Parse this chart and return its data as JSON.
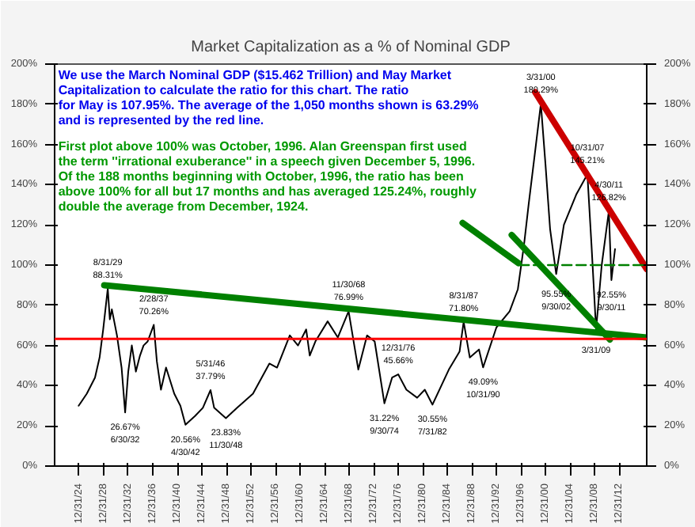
{
  "chart_data": {
    "type": "line",
    "title": "Market Capitalization as a % of Nominal GDP",
    "x": [
      "1924-12",
      "1926-04",
      "1927-08",
      "1928-05",
      "1928-12",
      "1929-08-31",
      "1930-01",
      "1930-05",
      "1931-03",
      "1931-12",
      "1932-06-30",
      "1933-01",
      "1933-08",
      "1934-04",
      "1934-12",
      "1935-07",
      "1936-03",
      "1937-02-28",
      "1937-09",
      "1938-05",
      "1939-03",
      "1940-07",
      "1941-07",
      "1942-04-30",
      "1943-12",
      "1945-03",
      "1946-05-31",
      "1947-01",
      "1948-11-30",
      "1950-10",
      "1953-05",
      "1956-01",
      "1957-04",
      "1959-05",
      "1960-09",
      "1962-01",
      "1962-08",
      "1963-07",
      "1965-07",
      "1967-03",
      "1968-11-30",
      "1970-07",
      "1971-12",
      "1973-03",
      "1974-09-30",
      "1976-01",
      "1976-12-31",
      "1978-05",
      "1980-02",
      "1981-05",
      "1982-07-31",
      "1985-04",
      "1987-01",
      "1987-08-31",
      "1988-09",
      "1990-03",
      "1990-10-31",
      "1993-01",
      "1995-03",
      "1996-07",
      "1997-07",
      "1998-04",
      "1999-04",
      "2000-03-31",
      "2001-01",
      "2001-10",
      "2002-09-30",
      "2004-01",
      "2006-01",
      "2007-10-31",
      "2008-07",
      "2009-03-31",
      "2010-03",
      "2011-04-30",
      "2011-09-30",
      "2012-05"
    ],
    "series": [
      {
        "color": "#000000",
        "values": [
          30,
          36,
          44,
          54,
          68,
          88.31,
          73,
          78,
          65,
          49,
          26.67,
          47,
          60,
          47,
          55,
          60,
          62,
          70.26,
          52,
          38,
          49,
          36,
          30,
          20.56,
          25,
          29,
          37.79,
          29,
          23.83,
          29,
          36,
          51,
          49,
          65,
          60,
          68,
          55,
          62,
          72,
          64,
          76.99,
          48,
          65,
          62,
          31.22,
          44,
          45.66,
          38,
          34,
          38,
          30.55,
          48,
          57,
          71.8,
          54,
          58,
          49.09,
          69,
          77,
          88,
          110,
          130,
          155,
          180.29,
          150,
          118,
          95.55,
          120,
          135,
          145.21,
          110,
          68,
          100,
          126.82,
          92.55,
          107.95
        ]
      },
      {
        "color": "#008000",
        "x": [
          "1929-02",
          "2017-07"
        ],
        "values": [
          90,
          64
        ]
      },
      {
        "color": "#cc0000",
        "x": [
          "1999-05",
          "2017-07"
        ],
        "values": [
          186,
          98
        ]
      },
      {
        "color": "#008000",
        "x": [
          "1995-07",
          "2011-07"
        ],
        "values": [
          115,
          63
        ]
      },
      {
        "color": "#008000",
        "x": [
          "1987-07",
          "1996-08"
        ],
        "values": [
          121,
          101
        ]
      },
      {
        "color": "#008000",
        "x": [
          "1996-10",
          "2017-07"
        ],
        "values": [
          100,
          100
        ],
        "line_style": "dashed"
      }
    ],
    "ref_lines": [
      {
        "axis": "y",
        "value": 63.29,
        "color": "#ff0000"
      }
    ],
    "xlim": [
      "1921-01",
      "2017-07"
    ],
    "xticks": [
      {
        "value": "1924-12-31",
        "label": "12/31/24"
      },
      {
        "value": "1928-12-31",
        "label": "12/31/28"
      },
      {
        "value": "1932-12-31",
        "label": "12/31/32"
      },
      {
        "value": "1936-12-31",
        "label": "12/31/36"
      },
      {
        "value": "1940-12-31",
        "label": "12/31/40"
      },
      {
        "value": "1944-12-31",
        "label": "12/31/44"
      },
      {
        "value": "1948-12-31",
        "label": "12/31/48"
      },
      {
        "value": "1952-12-31",
        "label": "12/31/52"
      },
      {
        "value": "1956-12-31",
        "label": "12/31/56"
      },
      {
        "value": "1960-12-31",
        "label": "12/31/60"
      },
      {
        "value": "1964-12-31",
        "label": "12/31/64"
      },
      {
        "value": "1968-12-31",
        "label": "12/31/68"
      },
      {
        "value": "1972-12-31",
        "label": "12/31/72"
      },
      {
        "value": "1976-12-31",
        "label": "12/31/76"
      },
      {
        "value": "1980-12-31",
        "label": "12/31/80"
      },
      {
        "value": "1984-12-31",
        "label": "12/31/84"
      },
      {
        "value": "1988-12-31",
        "label": "12/31/88"
      },
      {
        "value": "1992-12-31",
        "label": "12/31/92"
      },
      {
        "value": "1996-12-31",
        "label": "12/31/96"
      },
      {
        "value": "2000-12-31",
        "label": "12/31/00"
      },
      {
        "value": "2004-12-31",
        "label": "12/31/04"
      },
      {
        "value": "2008-12-31",
        "label": "12/31/08"
      },
      {
        "value": "2012-12-31",
        "label": "12/31/12"
      }
    ],
    "ylim": [
      0,
      200
    ],
    "yticks": [
      {
        "value": 0,
        "label": "0%"
      },
      {
        "value": 20,
        "label": "20%"
      },
      {
        "value": 40,
        "label": "40%"
      },
      {
        "value": 60,
        "label": "60%"
      },
      {
        "value": 80,
        "label": "80%"
      },
      {
        "value": 100,
        "label": "100%"
      },
      {
        "value": 120,
        "label": "120%"
      },
      {
        "value": 140,
        "label": "140%"
      },
      {
        "value": 160,
        "label": "160%"
      },
      {
        "value": 180,
        "label": "180%"
      },
      {
        "value": 200,
        "label": "200%"
      }
    ],
    "y2lim": [
      0,
      200
    ],
    "y2ticks": [
      {
        "value": 0,
        "label": "0%"
      },
      {
        "value": 20,
        "label": "20%"
      },
      {
        "value": 40,
        "label": "40%"
      },
      {
        "value": 60,
        "label": "60%"
      },
      {
        "value": 80,
        "label": "80%"
      },
      {
        "value": 100,
        "label": "100%"
      },
      {
        "value": 120,
        "label": "120%"
      },
      {
        "value": 140,
        "label": "140%"
      },
      {
        "value": 160,
        "label": "160%"
      },
      {
        "value": 180,
        "label": "180%"
      },
      {
        "value": 200,
        "label": "200%"
      }
    ],
    "grid": false,
    "annotations": [
      "We use the March Nominal GDP ($15.462 Trillion) and May Market\nCapitalization to calculate the ratio for this chart.  The ratio\nfor May is 107.95%.  The average of the 1,050 months shown is 63.29%\nand is represented by the red line.",
      "First plot above 100% was October, 1996.  Alan Greenspan first used\nthe term ''irrational exuberance'' in a speech given December 5, 1996.\nOf the 188 months beginning with October, 1996, the ratio has been\nabove 100% for all but 17 months and has averaged 125.24%, roughly\ndouble the average from December, 1924.",
      {
        "text": "8/31/29\n88.31%",
        "x": "1929-08-31",
        "y": 88.31
      },
      {
        "text": "2/28/37\n70.26%",
        "x": "1937-02-28",
        "y": 70.26
      },
      {
        "text": "26.67%\n6/30/32",
        "x": "1932-06-30",
        "y": 26.67
      },
      {
        "text": "20.56%\n4/30/42",
        "x": "1942-04-30",
        "y": 20.56
      },
      {
        "text": "5/31/46\n37.79%",
        "x": "1946-05-31",
        "y": 37.79
      },
      {
        "text": "23.83%\n11/30/48",
        "x": "1948-11-30",
        "y": 23.83
      },
      {
        "text": "11/30/68\n76.99%",
        "x": "1968-11-30",
        "y": 76.99
      },
      {
        "text": "12/31/76\n45.66%",
        "x": "1976-12-31",
        "y": 45.66
      },
      {
        "text": "31.22%\n9/30/74",
        "x": "1974-09-30",
        "y": 31.22
      },
      {
        "text": "30.55%\n7/31/82",
        "x": "1982-07-31",
        "y": 30.55
      },
      {
        "text": "8/31/87\n71.80%",
        "x": "1987-08-31",
        "y": 71.8
      },
      {
        "text": "49.09%\n10/31/90",
        "x": "1990-10-31",
        "y": 49.09
      },
      {
        "text": "3/31/00\n180.29%",
        "x": "2000-03-31",
        "y": 180.29
      },
      {
        "text": "95.55%\n9/30/02",
        "x": "2002-09-30",
        "y": 95.55
      },
      {
        "text": "10/31/07\n145.21%",
        "x": "2007-10-31",
        "y": 145.21
      },
      {
        "text": "3/31/09",
        "x": "2009-03-31",
        "y": 68
      },
      {
        "text": "4/30/11\n126.82%",
        "x": "2011-04-30",
        "y": 126.82
      },
      {
        "text": "92.55%\n9/30/11",
        "x": "2011-09-30",
        "y": 92.55
      }
    ]
  }
}
